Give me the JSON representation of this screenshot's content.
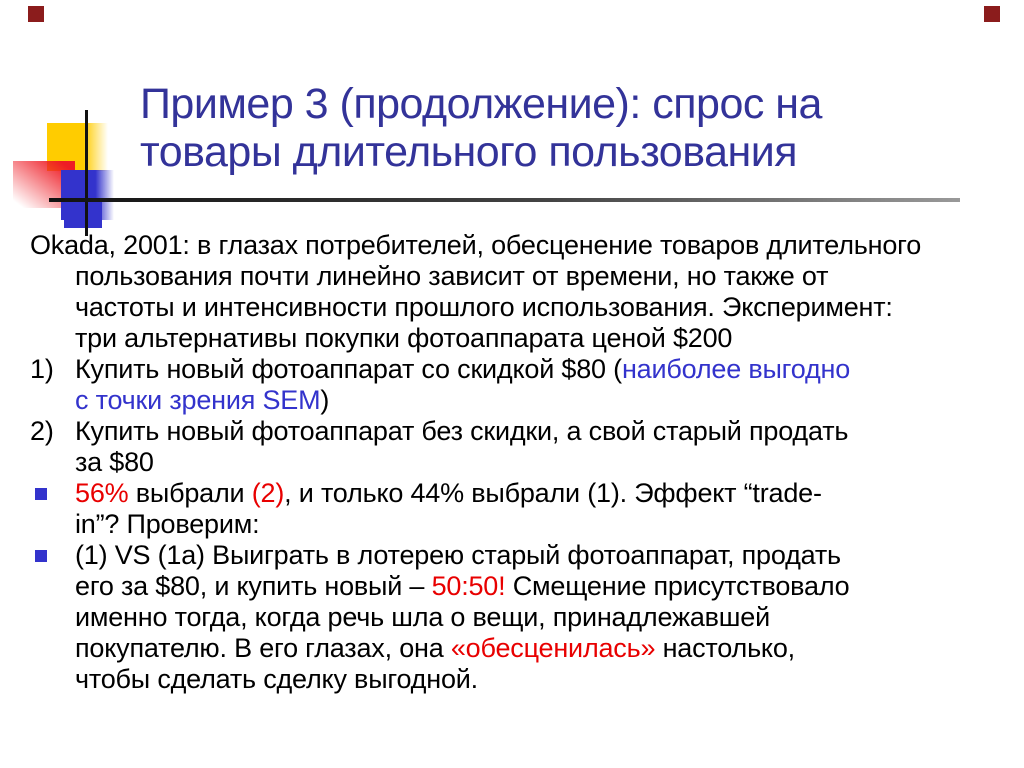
{
  "colors": {
    "title": "#333399",
    "body_text": "#000000",
    "accent_blue": "#3333CC",
    "accent_red": "#E80000",
    "bullet": "#3333CC",
    "corner": "#8B1C1C",
    "decor_yellow": "#FFCC00",
    "decor_red": "#EE1C25",
    "decor_blue": "#3333CC",
    "rule_dark": "#111111",
    "rule_light": "#999999"
  },
  "title": {
    "line1": "Пример 3 (продолжение): спрос на",
    "line2": "товары длительного пользования"
  },
  "body": {
    "blocks": [
      {
        "type": "plain",
        "marker": "",
        "segments": [
          {
            "c": "black",
            "t": "Okada, 2001: в глазах потребителей, обесценение товаров длительного\nпользования почти линейно зависит от времени, но также от\nчастоты и интенсивности прошлого использования. Эксперимент:\nтри альтернативы покупки фотоаппарата ценой $200"
          }
        ]
      },
      {
        "type": "numbered",
        "marker": "1)",
        "segments": [
          {
            "c": "black",
            "t": "Купить новый фотоаппарат со скидкой $80 ("
          },
          {
            "c": "blue",
            "t": "наиболее выгодно\nс точки зрения SEM"
          },
          {
            "c": "black",
            "t": ")"
          }
        ]
      },
      {
        "type": "numbered",
        "marker": "2)",
        "segments": [
          {
            "c": "black",
            "t": "Купить новый фотоаппарат без скидки, а свой старый продать\nза $80"
          }
        ]
      },
      {
        "type": "bullet",
        "marker": "▪",
        "segments": [
          {
            "c": "red",
            "t": "56%"
          },
          {
            "c": "black",
            "t": " выбрали "
          },
          {
            "c": "red",
            "t": "(2)"
          },
          {
            "c": "black",
            "t": ", и только 44% выбрали (1). Эффект “trade-\nin”? Проверим:"
          }
        ]
      },
      {
        "type": "bullet",
        "marker": "▪",
        "segments": [
          {
            "c": "black",
            "t": "(1) VS (1а) Выиграть в лотерею старый фотоаппарат, продать\nего за $80, и купить новый – "
          },
          {
            "c": "red",
            "t": "50:50!"
          },
          {
            "c": "black",
            "t": " Смещение присутствовало\nименно тогда, когда речь шла о вещи, принадлежавшей\nпокупателю. В его глазах, она "
          },
          {
            "c": "red",
            "t": "«обесценилась»"
          },
          {
            "c": "black",
            "t": " настолько,\nчтобы сделать сделку выгодной."
          }
        ]
      }
    ]
  }
}
